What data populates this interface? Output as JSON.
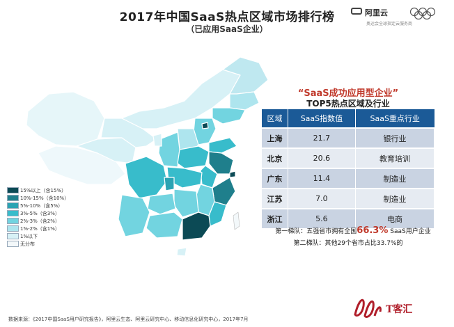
{
  "header": {
    "title": "2017年中国SaaS热点区域市场排行榜",
    "subtitle": "（已应用SaaS企业）"
  },
  "logo": {
    "brand": "阿里云",
    "tagline": "奥运会全球指定云服务商"
  },
  "legend": {
    "items": [
      {
        "label": "15%以上（含15%）",
        "color": "#0c4a55"
      },
      {
        "label": "10%-15%（含10%）",
        "color": "#1f7f8c"
      },
      {
        "label": "5%-10%（含5%）",
        "color": "#2ba3b3"
      },
      {
        "label": "3%-5%（含3%）",
        "color": "#38bccb"
      },
      {
        "label": "2%-3%（含2%）",
        "color": "#72d4e0"
      },
      {
        "label": "1%-2%（含1%）",
        "color": "#aee5ee"
      },
      {
        "label": "1%以下",
        "color": "#d7f1f6"
      },
      {
        "label": "无分布",
        "color": "#f3f8fa"
      }
    ]
  },
  "table": {
    "title": "“SaaS成功应用型企业”",
    "subtitle": "TOP5热点区域及行业",
    "headers": [
      "区域",
      "SaaS指数值",
      "SaaS重点行业"
    ]
  },
  "chart_data": {
    "type": "table",
    "columns": [
      "区域",
      "SaaS指数值",
      "SaaS重点行业"
    ],
    "rows": [
      {
        "region": "上海",
        "value": "21.7",
        "industry": "银行业"
      },
      {
        "region": "北京",
        "value": "20.6",
        "industry": "教育培训"
      },
      {
        "region": "广东",
        "value": "11.4",
        "industry": "制造业"
      },
      {
        "region": "江苏",
        "value": "7.0",
        "industry": "制造业"
      },
      {
        "region": "浙江",
        "value": "5.6",
        "industry": "电商"
      }
    ]
  },
  "notes": {
    "tier1_prefix": "第一梯队：五强省市拥有全国",
    "tier1_highlight": "66.3%",
    "tier1_suffix": " SaaS用户企业",
    "tier2": "第二梯队：其他29个省市占比33.7%的"
  },
  "footer": {
    "source": "数据来源：《2017中国SaaS用户研究报告》，阿里云生态、阿里云研究中心、移动信息化研究中心，2017年7月"
  },
  "watermark": {
    "text": "T客汇"
  },
  "colors": {
    "header_blue": "#1b5a97",
    "highlight_red": "#c0392b",
    "row_dark": "#c9d3e2",
    "row_light": "#e6ebf2"
  }
}
